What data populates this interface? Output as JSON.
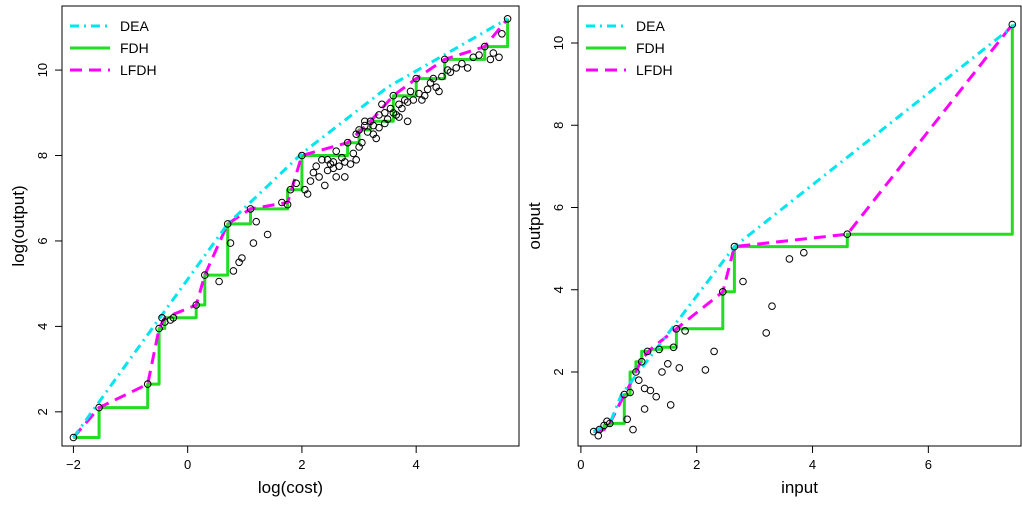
{
  "chart_data": [
    {
      "type": "line",
      "xlabel": "log(cost)",
      "ylabel": "log(output)",
      "xticks": [
        -2,
        0,
        2,
        4
      ],
      "yticks": [
        2,
        4,
        6,
        8,
        10
      ],
      "xlim": [
        -2.2,
        5.8
      ],
      "ylim": [
        1.2,
        11.5
      ],
      "legend_position": "top-left",
      "series": [
        {
          "name": "DEA",
          "style": "dotdash",
          "color": "#00e5ee",
          "x": [
            -2.0,
            0.7,
            2.0,
            3.5,
            5.6
          ],
          "y": [
            1.4,
            6.4,
            8.05,
            9.6,
            11.2
          ]
        },
        {
          "name": "FDH",
          "style": "solid",
          "color": "#22dd22",
          "x": [
            -2.0,
            -1.55,
            -1.55,
            -0.7,
            -0.7,
            -0.5,
            -0.5,
            -0.4,
            -0.4,
            0.15,
            0.15,
            0.3,
            0.3,
            0.7,
            0.7,
            1.1,
            1.1,
            1.75,
            1.75,
            2.0,
            2.0,
            2.8,
            2.8,
            3.0,
            3.0,
            3.2,
            3.2,
            3.6,
            3.6,
            4.0,
            4.0,
            4.5,
            4.5,
            5.2,
            5.2,
            5.6,
            5.6
          ],
          "y": [
            1.4,
            1.4,
            2.1,
            2.1,
            2.65,
            2.65,
            3.95,
            3.95,
            4.2,
            4.2,
            4.5,
            4.5,
            5.2,
            5.2,
            6.4,
            6.4,
            6.75,
            6.75,
            7.2,
            7.2,
            8.0,
            8.0,
            8.3,
            8.3,
            8.6,
            8.6,
            8.8,
            8.8,
            9.4,
            9.4,
            9.8,
            9.8,
            10.25,
            10.25,
            10.55,
            10.55,
            11.2
          ]
        },
        {
          "name": "LFDH",
          "style": "dashed",
          "color": "#ff00ff",
          "x": [
            -2.0,
            -1.55,
            -0.7,
            -0.5,
            -0.4,
            0.15,
            0.3,
            0.7,
            1.1,
            1.75,
            2.0,
            2.8,
            3.2,
            3.6,
            4.0,
            4.5,
            5.2,
            5.6
          ],
          "y": [
            1.4,
            2.1,
            2.65,
            3.95,
            4.2,
            4.5,
            5.2,
            6.4,
            6.75,
            6.9,
            8.0,
            8.3,
            8.8,
            9.4,
            9.8,
            10.25,
            10.55,
            11.2
          ]
        },
        {
          "name": "",
          "style": "points",
          "x": [
            -2.0,
            -1.55,
            -0.7,
            -0.5,
            -0.45,
            -0.4,
            -0.3,
            -0.25,
            0.15,
            0.3,
            0.55,
            0.7,
            0.75,
            0.8,
            0.9,
            0.95,
            1.1,
            1.15,
            1.2,
            1.4,
            1.65,
            1.75,
            1.8,
            1.9,
            2.0,
            2.05,
            2.1,
            2.15,
            2.2,
            2.3,
            2.35,
            2.4,
            2.45,
            2.5,
            2.55,
            2.6,
            2.65,
            2.7,
            2.75,
            2.8,
            2.85,
            2.9,
            2.95,
            3.0,
            3.05,
            3.1,
            3.15,
            3.2,
            3.25,
            3.3,
            3.35,
            3.4,
            3.45,
            3.5,
            3.55,
            3.6,
            3.65,
            3.7,
            3.75,
            3.8,
            3.85,
            3.9,
            3.95,
            4.0,
            4.05,
            4.1,
            4.2,
            4.25,
            4.3,
            4.35,
            4.4,
            4.45,
            4.5,
            4.55,
            4.6,
            4.7,
            4.8,
            4.9,
            5.0,
            5.1,
            5.2,
            5.3,
            5.35,
            5.45,
            5.5,
            5.6,
            2.45,
            2.6,
            2.95,
            3.1,
            3.25,
            3.45,
            3.6,
            3.7,
            3.85,
            4.15,
            2.25,
            2.55,
            2.75,
            3.0,
            3.35
          ],
          "y": [
            1.4,
            2.1,
            2.65,
            3.95,
            4.2,
            4.1,
            4.15,
            4.2,
            4.5,
            5.2,
            5.05,
            6.4,
            5.95,
            5.3,
            5.5,
            5.6,
            6.75,
            5.95,
            6.45,
            6.15,
            6.9,
            6.85,
            7.2,
            7.35,
            8.0,
            7.2,
            7.1,
            7.4,
            7.6,
            7.5,
            7.9,
            7.3,
            7.65,
            7.8,
            7.85,
            7.5,
            7.75,
            7.95,
            7.85,
            8.3,
            7.8,
            8.05,
            8.5,
            8.6,
            8.3,
            8.8,
            8.55,
            8.8,
            8.7,
            8.4,
            8.65,
            9.2,
            9.0,
            8.85,
            9.1,
            9.4,
            8.95,
            8.9,
            9.1,
            9.3,
            9.25,
            9.5,
            9.3,
            9.8,
            9.45,
            9.3,
            9.55,
            9.7,
            9.8,
            9.6,
            9.5,
            9.85,
            10.25,
            10.0,
            9.95,
            10.05,
            10.15,
            10.05,
            10.3,
            10.35,
            10.55,
            10.25,
            10.4,
            10.3,
            10.85,
            11.2,
            7.9,
            8.1,
            7.9,
            8.7,
            8.5,
            8.75,
            9.0,
            9.2,
            8.8,
            9.4,
            7.75,
            7.7,
            7.5,
            8.2,
            8.95
          ]
        }
      ]
    },
    {
      "type": "line",
      "xlabel": "input",
      "ylabel": "output",
      "xticks": [
        0,
        2,
        4,
        6
      ],
      "yticks": [
        2,
        4,
        6,
        8,
        10
      ],
      "xlim": [
        -0.05,
        7.6
      ],
      "ylim": [
        0.2,
        10.9
      ],
      "legend_position": "top-left",
      "series": [
        {
          "name": "DEA",
          "style": "dotdash",
          "color": "#00e5ee",
          "x": [
            0.22,
            0.5,
            0.7,
            2.65,
            7.5
          ],
          "y": [
            0.55,
            0.75,
            1.45,
            5.05,
            10.45
          ]
        },
        {
          "name": "FDH",
          "style": "solid",
          "color": "#22dd22",
          "x": [
            0.22,
            0.32,
            0.32,
            0.4,
            0.4,
            0.5,
            0.5,
            0.75,
            0.75,
            0.85,
            0.85,
            0.95,
            0.95,
            1.05,
            1.05,
            1.2,
            1.2,
            1.4,
            1.4,
            1.65,
            1.65,
            2.45,
            2.45,
            2.65,
            2.65,
            4.6,
            4.6,
            7.45,
            7.45
          ],
          "y": [
            0.55,
            0.55,
            0.6,
            0.6,
            0.7,
            0.7,
            0.75,
            0.75,
            1.45,
            1.45,
            2.0,
            2.0,
            2.25,
            2.25,
            2.5,
            2.5,
            2.55,
            2.55,
            2.6,
            2.6,
            3.05,
            3.05,
            3.95,
            3.95,
            5.05,
            5.05,
            5.35,
            5.35,
            10.45
          ]
        },
        {
          "name": "LFDH",
          "style": "dashed",
          "color": "#ff00ff",
          "x": [
            0.22,
            0.4,
            0.5,
            0.75,
            0.85,
            0.95,
            1.05,
            1.2,
            1.65,
            2.45,
            2.65,
            4.6,
            7.45
          ],
          "y": [
            0.55,
            0.6,
            0.75,
            1.45,
            1.7,
            2.0,
            2.3,
            2.55,
            3.05,
            3.95,
            5.05,
            5.35,
            10.45
          ]
        },
        {
          "name": "",
          "style": "points",
          "x": [
            0.22,
            0.3,
            0.32,
            0.4,
            0.45,
            0.5,
            0.75,
            0.8,
            0.85,
            0.9,
            0.95,
            1.0,
            1.05,
            1.1,
            1.1,
            1.15,
            1.2,
            1.3,
            1.35,
            1.4,
            1.5,
            1.55,
            1.6,
            1.65,
            1.7,
            1.8,
            2.15,
            2.3,
            2.45,
            2.65,
            2.8,
            3.2,
            3.3,
            3.6,
            3.85,
            4.6,
            7.45
          ],
          "y": [
            0.55,
            0.45,
            0.6,
            0.7,
            0.8,
            0.75,
            1.45,
            0.85,
            1.5,
            0.6,
            2.0,
            1.8,
            2.25,
            1.1,
            1.6,
            2.5,
            1.55,
            1.4,
            2.55,
            2.0,
            2.2,
            1.2,
            2.6,
            3.05,
            2.1,
            3.0,
            2.05,
            2.5,
            3.95,
            5.05,
            4.2,
            2.95,
            3.6,
            4.75,
            4.9,
            5.35,
            10.45
          ]
        }
      ]
    }
  ]
}
